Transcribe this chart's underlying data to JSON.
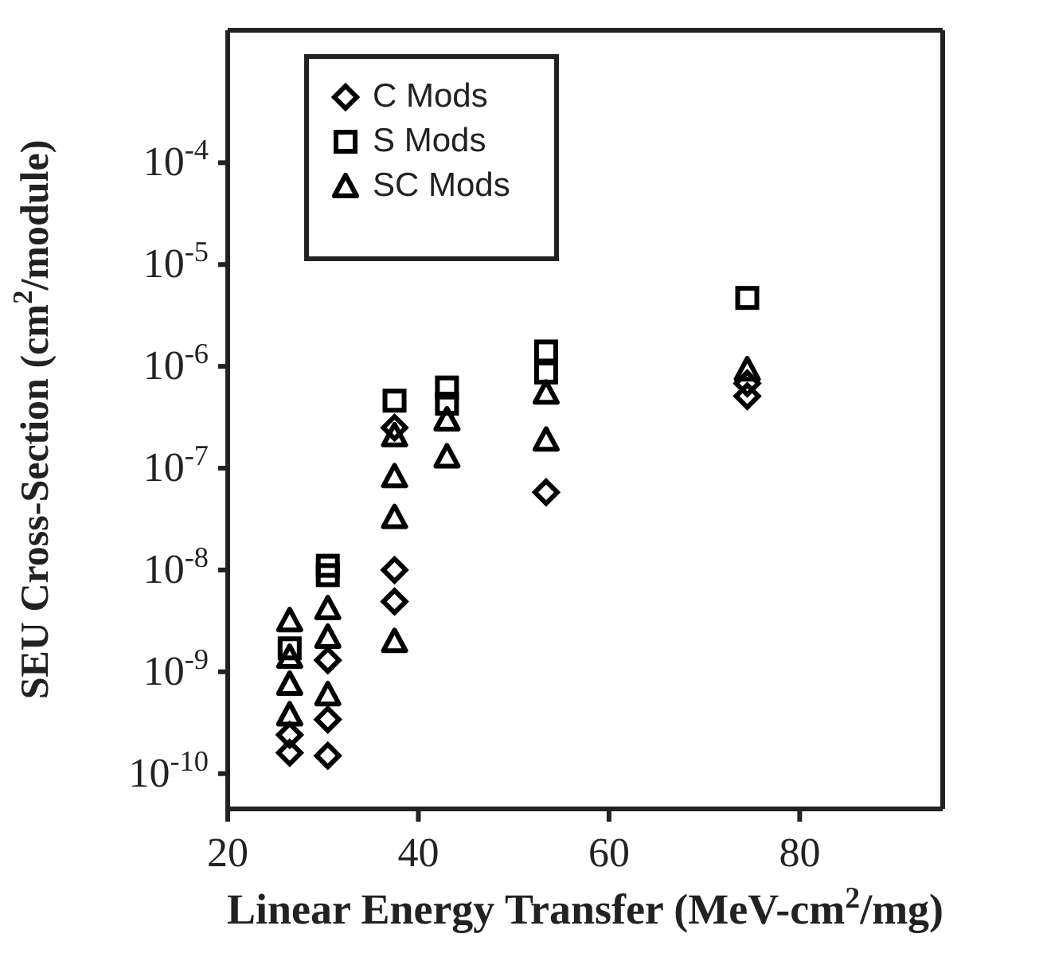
{
  "chart_data": {
    "type": "scatter",
    "xlabel": "Linear Energy Transfer (MeV-cm$^{2}$/mg)",
    "ylabel": "SEU Cross-Section (cm$^{2}$/module)",
    "log": "y",
    "xlim": [
      20,
      95
    ],
    "xticks": [
      20,
      40,
      60,
      80
    ],
    "ylim": [
      4.5e-11,
      0.002
    ],
    "yticks": [
      {
        "value": 1e-10,
        "label": "10$^{-10}$"
      },
      {
        "value": 1e-09,
        "label": "10$^{-9}$"
      },
      {
        "value": 1e-08,
        "label": "10$^{-8}$"
      },
      {
        "value": 1e-07,
        "label": "10$^{-7}$"
      },
      {
        "value": 1e-06,
        "label": "10$^{-6}$"
      },
      {
        "value": 1e-05,
        "label": "10$^{-5}$"
      },
      {
        "value": 0.0001,
        "label": "10$^{-4}$"
      }
    ],
    "grid": false,
    "legend": "top left",
    "series": [
      {
        "name": "C Mods",
        "color": "#000000",
        "marker": "diamond",
        "x": [
          26.5,
          26.5,
          30.5,
          30.5,
          30.5,
          37.5,
          37.5,
          37.5,
          53.4,
          74.5,
          74.5
        ],
        "values": [
          2.4e-10,
          1.6e-10,
          1.3e-09,
          3.4e-10,
          1.5e-10,
          2.5e-07,
          1e-08,
          4.9e-09,
          5.8e-08,
          6.8e-07,
          5.1e-07
        ]
      },
      {
        "name": "S Mods",
        "color": "#000000",
        "marker": "square",
        "x": [
          26.5,
          30.5,
          30.5,
          37.5,
          43,
          43,
          53.4,
          53.4,
          74.5
        ],
        "values": [
          1.7e-09,
          1.1e-08,
          8.9e-09,
          4.6e-07,
          6.2e-07,
          4.3e-07,
          1.4e-06,
          8.7e-07,
          4.7e-06
        ]
      },
      {
        "name": "SC Mods",
        "color": "#000000",
        "marker": "triangle",
        "x": [
          26.5,
          26.5,
          26.5,
          26.5,
          30.5,
          30.5,
          30.5,
          37.5,
          37.5,
          37.5,
          37.5,
          43,
          43,
          53.4,
          53.4,
          74.5
        ],
        "values": [
          3.2e-09,
          1.4e-09,
          7.6e-10,
          3.8e-10,
          4.2e-09,
          2.2e-09,
          6e-10,
          2.1e-07,
          8.3e-08,
          3.3e-08,
          2e-09,
          3e-07,
          1.3e-07,
          5.5e-07,
          1.9e-07,
          9.3e-07
        ]
      }
    ]
  }
}
